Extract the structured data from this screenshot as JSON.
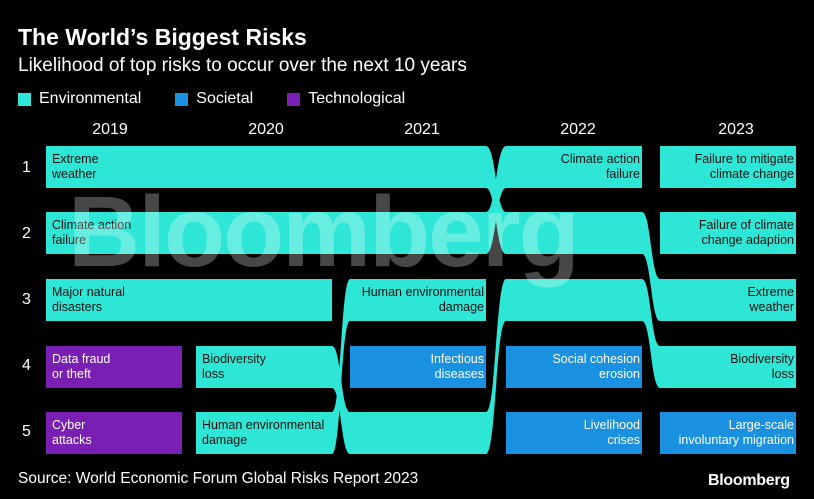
{
  "title": "The World’s Biggest Risks",
  "subtitle": "Likelihood of top risks to occur over the next 10 years",
  "source": "Source: World Economic Forum Global Risks Report 2023",
  "logo": "Bloomberg",
  "watermark": "Bloomberg",
  "colors": {
    "Environmental": "#2ee6d6",
    "Societal": "#1a90e0",
    "Technological": "#7a1fb4"
  },
  "chart_data": {
    "type": "table",
    "title": "The World’s Biggest Risks",
    "subtitle": "Likelihood of top risks to occur over the next 10 years",
    "legend": [
      {
        "name": "Environmental"
      },
      {
        "name": "Societal"
      },
      {
        "name": "Technological"
      }
    ],
    "years": [
      "2019",
      "2020",
      "2021",
      "2022",
      "2023"
    ],
    "ranks": [
      "1",
      "2",
      "3",
      "4",
      "5"
    ],
    "rankings": {
      "2019": [
        {
          "label": "Extreme weather",
          "lines": [
            "Extreme",
            "weather"
          ],
          "category": "Environmental"
        },
        {
          "label": "Climate action failure",
          "lines": [
            "Climate action",
            "failure"
          ],
          "category": "Environmental"
        },
        {
          "label": "Major natural disasters",
          "lines": [
            "Major natural",
            "disasters"
          ],
          "category": "Environmental"
        },
        {
          "label": "Data fraud or theft",
          "lines": [
            "Data fraud",
            "or theft"
          ],
          "category": "Technological"
        },
        {
          "label": "Cyber attacks",
          "lines": [
            "Cyber",
            "attacks"
          ],
          "category": "Technological"
        }
      ],
      "2020": [
        {
          "label": "Extreme weather",
          "lines": [],
          "category": "Environmental"
        },
        {
          "label": "Climate action failure",
          "lines": [],
          "category": "Environmental"
        },
        {
          "label": "Major natural disasters",
          "lines": [],
          "category": "Environmental"
        },
        {
          "label": "Biodiversity loss",
          "lines": [
            "Biodiversity",
            "loss"
          ],
          "category": "Environmental"
        },
        {
          "label": "Human environmental damage",
          "lines": [
            "Human environmental",
            "damage"
          ],
          "category": "Environmental"
        }
      ],
      "2021": [
        {
          "label": "Extreme weather",
          "lines": [],
          "category": "Environmental"
        },
        {
          "label": "Climate action failure",
          "lines": [],
          "category": "Environmental"
        },
        {
          "label": "Human environmental damage",
          "lines": [
            "Human environmental",
            "damage"
          ],
          "category": "Environmental"
        },
        {
          "label": "Infectious diseases",
          "lines": [
            "Infectious",
            "diseases"
          ],
          "category": "Societal"
        },
        {
          "label": "Biodiversity loss",
          "lines": [],
          "category": "Environmental"
        }
      ],
      "2022": [
        {
          "label": "Climate action failure",
          "lines": [
            "Climate action",
            "failure"
          ],
          "category": "Environmental"
        },
        {
          "label": "Extreme weather",
          "lines": [],
          "category": "Environmental"
        },
        {
          "label": "Biodiversity loss",
          "lines": [],
          "category": "Environmental"
        },
        {
          "label": "Social cohesion erosion",
          "lines": [
            "Social cohesion",
            "erosion"
          ],
          "category": "Societal"
        },
        {
          "label": "Livelihood crises",
          "lines": [
            "Livelihood",
            "crises"
          ],
          "category": "Societal"
        }
      ],
      "2023": [
        {
          "label": "Failure to mitigate climate change",
          "lines": [
            "Failure to mitigate",
            "climate change"
          ],
          "category": "Environmental"
        },
        {
          "label": "Failure of climate change adaption",
          "lines": [
            "Failure of climate",
            "change adaption"
          ],
          "category": "Environmental"
        },
        {
          "label": "Extreme weather",
          "lines": [
            "Extreme",
            "weather"
          ],
          "category": "Environmental"
        },
        {
          "label": "Biodiversity loss",
          "lines": [
            "Biodiversity",
            "loss"
          ],
          "category": "Environmental"
        },
        {
          "label": "Large-scale involuntary migration",
          "lines": [
            "Large-scale",
            "involuntary migration"
          ],
          "category": "Societal"
        }
      ]
    },
    "flows": [
      {
        "name": "Extreme weather",
        "path": [
          "2019:1",
          "2020:1",
          "2021:1",
          "2022:2",
          "2023:3"
        ]
      },
      {
        "name": "Climate action failure",
        "path": [
          "2019:2",
          "2020:2",
          "2021:2",
          "2022:1"
        ]
      },
      {
        "name": "Major natural disasters",
        "path": [
          "2019:3",
          "2020:3"
        ]
      },
      {
        "name": "Human environmental damage",
        "path": [
          "2020:5",
          "2021:3"
        ]
      },
      {
        "name": "Biodiversity loss",
        "path": [
          "2020:4",
          "2021:5",
          "2022:3",
          "2023:4"
        ]
      }
    ]
  }
}
